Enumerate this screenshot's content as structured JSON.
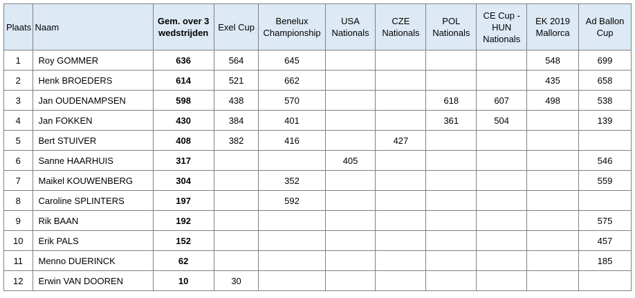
{
  "columns": [
    "Plaats",
    "Naam",
    "Gem. over 3 wedstrijden",
    "Exel Cup",
    "Benelux Championship",
    "USA Nationals",
    "CZE Nationals",
    "POL Nationals",
    "CE Cup - HUN Nationals",
    "EK 2019 Mallorca",
    "Ad Ballon Cup"
  ],
  "rows": [
    [
      "1",
      "Roy GOMMER",
      "636",
      "564",
      "645",
      "",
      "",
      "",
      "",
      "548",
      "699"
    ],
    [
      "2",
      "Henk BROEDERS",
      "614",
      "521",
      "662",
      "",
      "",
      "",
      "",
      "435",
      "658"
    ],
    [
      "3",
      "Jan OUDENAMPSEN",
      "598",
      "438",
      "570",
      "",
      "",
      "618",
      "607",
      "498",
      "538"
    ],
    [
      "4",
      "Jan FOKKEN",
      "430",
      "384",
      "401",
      "",
      "",
      "361",
      "504",
      "",
      "139"
    ],
    [
      "5",
      "Bert STUIVER",
      "408",
      "382",
      "416",
      "",
      "427",
      "",
      "",
      "",
      ""
    ],
    [
      "6",
      "Sanne HAARHUIS",
      "317",
      "",
      "",
      "405",
      "",
      "",
      "",
      "",
      "546"
    ],
    [
      "7",
      "Maikel KOUWENBERG",
      "304",
      "",
      "352",
      "",
      "",
      "",
      "",
      "",
      "559"
    ],
    [
      "8",
      "Caroline SPLINTERS",
      "197",
      "",
      "592",
      "",
      "",
      "",
      "",
      "",
      ""
    ],
    [
      "9",
      "Rik BAAN",
      "192",
      "",
      "",
      "",
      "",
      "",
      "",
      "",
      "575"
    ],
    [
      "10",
      "Erik PALS",
      "152",
      "",
      "",
      "",
      "",
      "",
      "",
      "",
      "457"
    ],
    [
      "11",
      "Menno DUERINCK",
      "62",
      "",
      "",
      "",
      "",
      "",
      "",
      "",
      "185"
    ],
    [
      "12",
      "Erwin VAN DOOREN",
      "10",
      "30",
      "",
      "",
      "",
      "",
      "",
      "",
      ""
    ]
  ]
}
